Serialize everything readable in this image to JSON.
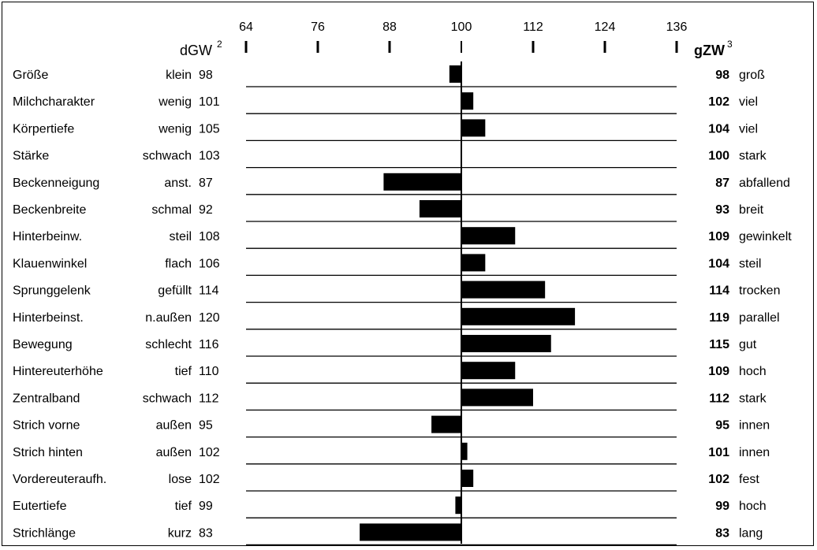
{
  "chart_data": {
    "type": "bar",
    "orientation": "horizontal",
    "baseline": 100,
    "xlim": [
      64,
      136
    ],
    "ticks": [
      64,
      76,
      88,
      100,
      112,
      124,
      136
    ],
    "left_header": "dGW",
    "left_header_sup": "2",
    "right_header": "gZW",
    "right_header_sup": "3",
    "bar_color": "#000000",
    "rows": [
      {
        "trait": "Größe",
        "low": "klein",
        "dgw": "98",
        "gzw": 98,
        "high": "groß"
      },
      {
        "trait": "Milchcharakter",
        "low": "wenig",
        "dgw": "101",
        "gzw": 102,
        "high": "viel"
      },
      {
        "trait": "Körpertiefe",
        "low": "wenig",
        "dgw": "105",
        "gzw": 104,
        "high": "viel"
      },
      {
        "trait": "Stärke",
        "low": "schwach",
        "dgw": "103",
        "gzw": 100,
        "high": "stark"
      },
      {
        "trait": "Beckenneigung",
        "low": "anst.",
        "dgw": "87",
        "gzw": 87,
        "high": "abfallend"
      },
      {
        "trait": "Beckenbreite",
        "low": "schmal",
        "dgw": "92",
        "gzw": 93,
        "high": "breit"
      },
      {
        "trait": "Hinterbeinw.",
        "low": "steil",
        "dgw": "108",
        "gzw": 109,
        "high": "gewinkelt"
      },
      {
        "trait": "Klauenwinkel",
        "low": "flach",
        "dgw": "106",
        "gzw": 104,
        "high": "steil"
      },
      {
        "trait": "Sprunggelenk",
        "low": "gefüllt",
        "dgw": "114",
        "gzw": 114,
        "high": "trocken"
      },
      {
        "trait": "Hinterbeinst.",
        "low": "n.außen",
        "dgw": "120",
        "gzw": 119,
        "high": "parallel"
      },
      {
        "trait": "Bewegung",
        "low": "schlecht",
        "dgw": "116",
        "gzw": 115,
        "high": "gut"
      },
      {
        "trait": "Hintereuterhöhe",
        "low": "tief",
        "dgw": "110",
        "gzw": 109,
        "high": "hoch"
      },
      {
        "trait": "Zentralband",
        "low": "schwach",
        "dgw": "112",
        "gzw": 112,
        "high": "stark"
      },
      {
        "trait": "Strich vorne",
        "low": "außen",
        "dgw": "95",
        "gzw": 95,
        "high": "innen"
      },
      {
        "trait": "Strich hinten",
        "low": "außen",
        "dgw": "102",
        "gzw": 101,
        "high": "innen"
      },
      {
        "trait": "Vordereuteraufh.",
        "low": "lose",
        "dgw": "102",
        "gzw": 102,
        "high": "fest"
      },
      {
        "trait": "Eutertiefe",
        "low": "tief",
        "dgw": "99",
        "gzw": 99,
        "high": "hoch"
      },
      {
        "trait": "Strichlänge",
        "low": "kurz",
        "dgw": "83",
        "gzw": 83,
        "high": "lang"
      }
    ]
  }
}
